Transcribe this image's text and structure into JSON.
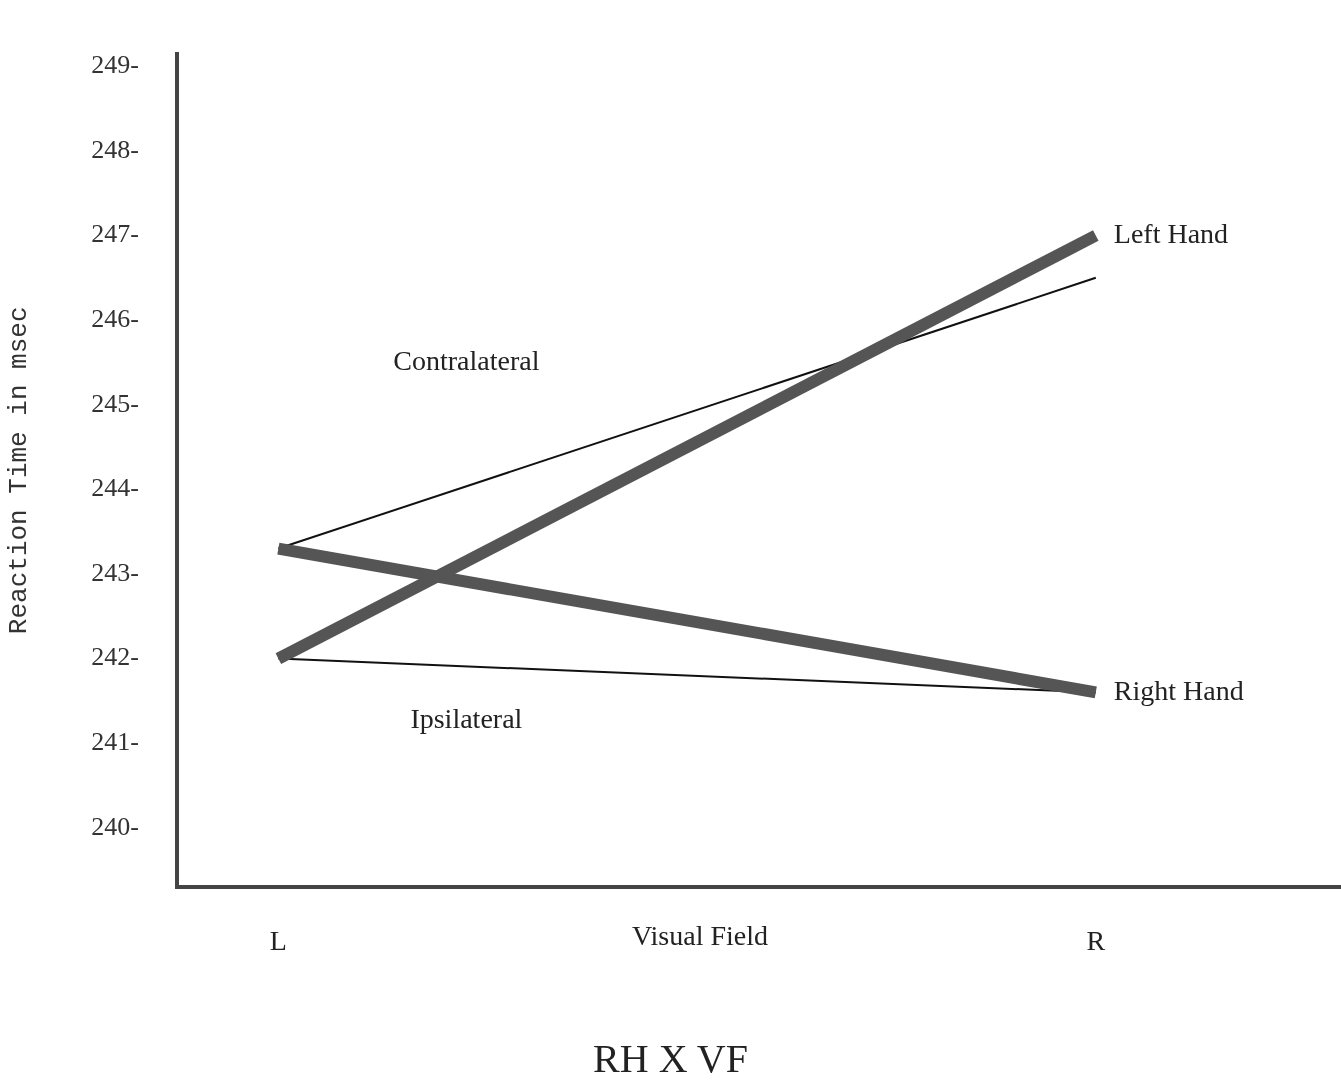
{
  "chart_data": {
    "type": "line",
    "title": "RH X VF",
    "xlabel": "Visual Field",
    "ylabel": "Reaction Time in msec",
    "categories": [
      "L",
      "R"
    ],
    "series": [
      {
        "name": "Left Hand",
        "color": "#555555",
        "values": [
          242,
          247
        ]
      },
      {
        "name": "Right Hand",
        "color": "#555555",
        "values": [
          243.3,
          241.6
        ]
      },
      {
        "name": "Contralateral",
        "color": "#111111",
        "values": [
          243.3,
          246.5
        ]
      },
      {
        "name": "Ipsilateral",
        "color": "#111111",
        "values": [
          242,
          241.6
        ]
      }
    ],
    "ylim": [
      239.3,
      249.15
    ],
    "yticks": [
      {
        "value": 240,
        "label": "240-"
      },
      {
        "value": 241,
        "label": "241-"
      },
      {
        "value": 242,
        "label": "242-"
      },
      {
        "value": 243,
        "label": "243-"
      },
      {
        "value": 244,
        "label": "244-"
      },
      {
        "value": 245,
        "label": "245-"
      },
      {
        "value": 246,
        "label": "246-"
      },
      {
        "value": 247,
        "label": "247-"
      },
      {
        "value": 248,
        "label": "248-"
      },
      {
        "value": 249,
        "label": "249-"
      }
    ],
    "grid": false,
    "legend": false,
    "marker": "none",
    "line_style": "solid"
  }
}
